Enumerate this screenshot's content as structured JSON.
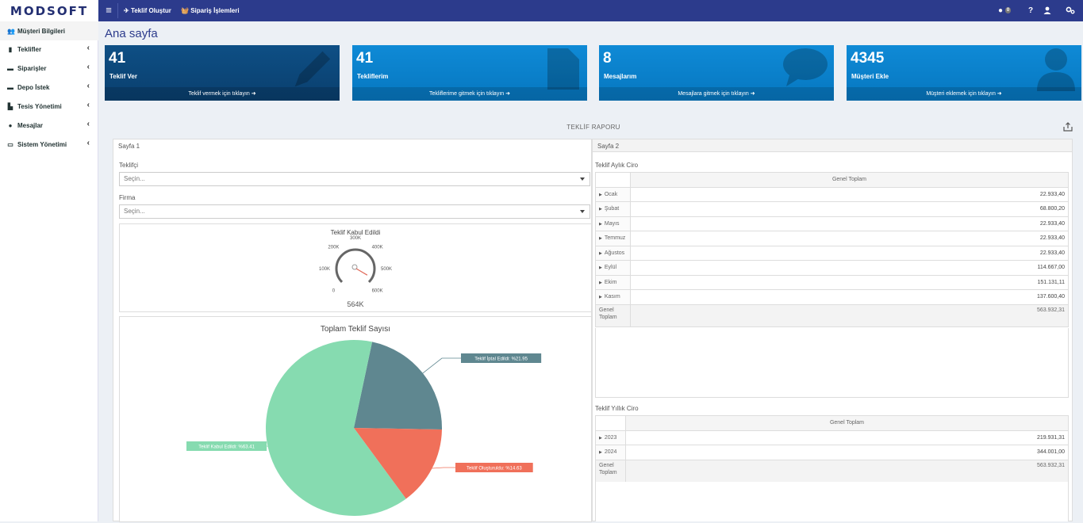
{
  "app": {
    "logo": "MODSOFT"
  },
  "topbar": {
    "menu_icon": "hamburger-icon",
    "links": [
      {
        "label": "Teklif Oluştur",
        "icon": "plane-icon"
      },
      {
        "label": "Sipariş İşlemleri",
        "icon": "basket-icon"
      }
    ],
    "message_badge": "0",
    "help": "?"
  },
  "sidebar": {
    "items": [
      {
        "label": "Müşteri Bilgileri",
        "icon": "users-icon"
      },
      {
        "label": "Teklifler",
        "icon": "file-icon"
      },
      {
        "label": "Siparişler",
        "icon": "briefcase-icon"
      },
      {
        "label": "Depo İstek",
        "icon": "briefcase-icon"
      },
      {
        "label": "Tesis Yönetimi",
        "icon": "bar-chart-icon"
      },
      {
        "label": "Mesajlar",
        "icon": "comments-icon"
      },
      {
        "label": "Sistem Yönetimi",
        "icon": "desktop-icon"
      }
    ]
  },
  "page": {
    "title": "Ana sayfa"
  },
  "cards": [
    {
      "number": "41",
      "label": "Teklif Ver",
      "footer": "Teklif vermek için tıklayın",
      "icon": "pencil-icon",
      "color": "#0a4478"
    },
    {
      "number": "41",
      "label": "Tekliflerim",
      "footer": "Tekliflerime gitmek için tıklayın",
      "icon": "file-icon",
      "color": "#0a82cf"
    },
    {
      "number": "8",
      "label": "Mesajlarım",
      "footer": "Mesajlara gitmek için tıklayın",
      "icon": "comment-icon",
      "color": "#0a82cf"
    },
    {
      "number": "4345",
      "label": "Müşteri Ekle",
      "footer": "Müşteri eklemek için tıklayın",
      "icon": "user-icon",
      "color": "#0a82cf"
    }
  ],
  "report": {
    "title": "TEKLİF RAPORU",
    "tabs": [
      "Sayfa 1",
      "Sayfa 2"
    ],
    "filters": [
      {
        "label": "Teklifçi",
        "placeholder": "Seçin..."
      },
      {
        "label": "Firma",
        "placeholder": "Seçin..."
      }
    ],
    "monthly": {
      "title": "Teklif Aylık Ciro",
      "header": "Genel Toplam",
      "rows": [
        {
          "label": "Ocak",
          "value": "22.933,40"
        },
        {
          "label": "Şubat",
          "value": "68.800,20"
        },
        {
          "label": "Mayıs",
          "value": "22.933,40"
        },
        {
          "label": "Temmuz",
          "value": "22.933,40"
        },
        {
          "label": "Ağustos",
          "value": "22.933,40"
        },
        {
          "label": "Eylül",
          "value": "114.667,00"
        },
        {
          "label": "Ekim",
          "value": "151.131,11"
        },
        {
          "label": "Kasım",
          "value": "137.600,40"
        }
      ],
      "total": {
        "label1": "Genel",
        "label2": "Toplam",
        "value": "563.932,31"
      }
    },
    "yearly": {
      "title": "Teklif Yıllık Ciro",
      "header": "Genel Toplam",
      "rows": [
        {
          "label": "2023",
          "value": "219.931,31"
        },
        {
          "label": "2024",
          "value": "344.001,00"
        }
      ],
      "total": {
        "label1": "Genel",
        "label2": "Toplam",
        "value": "563.932,31"
      }
    }
  },
  "chart_data": [
    {
      "type": "gauge",
      "title": "Teklif Kabul Edildi",
      "value_label": "564K",
      "value": 564000,
      "range": [
        0,
        600000
      ],
      "tick_labels": [
        "0",
        "100K",
        "200K",
        "300K",
        "400K",
        "500K",
        "600K"
      ]
    },
    {
      "type": "pie",
      "title": "Toplam Teklif Sayısı",
      "slices": [
        {
          "label": "Teklif İptal Edildi: %21.95",
          "value": 21.95,
          "color": "#5f8790"
        },
        {
          "label": "Teklif Oluşturuldu: %14.63",
          "value": 14.63,
          "color": "#f0705a"
        },
        {
          "label": "Teklif Kabul Edildi: %63.41",
          "value": 63.41,
          "color": "#86dbb0"
        }
      ]
    }
  ]
}
